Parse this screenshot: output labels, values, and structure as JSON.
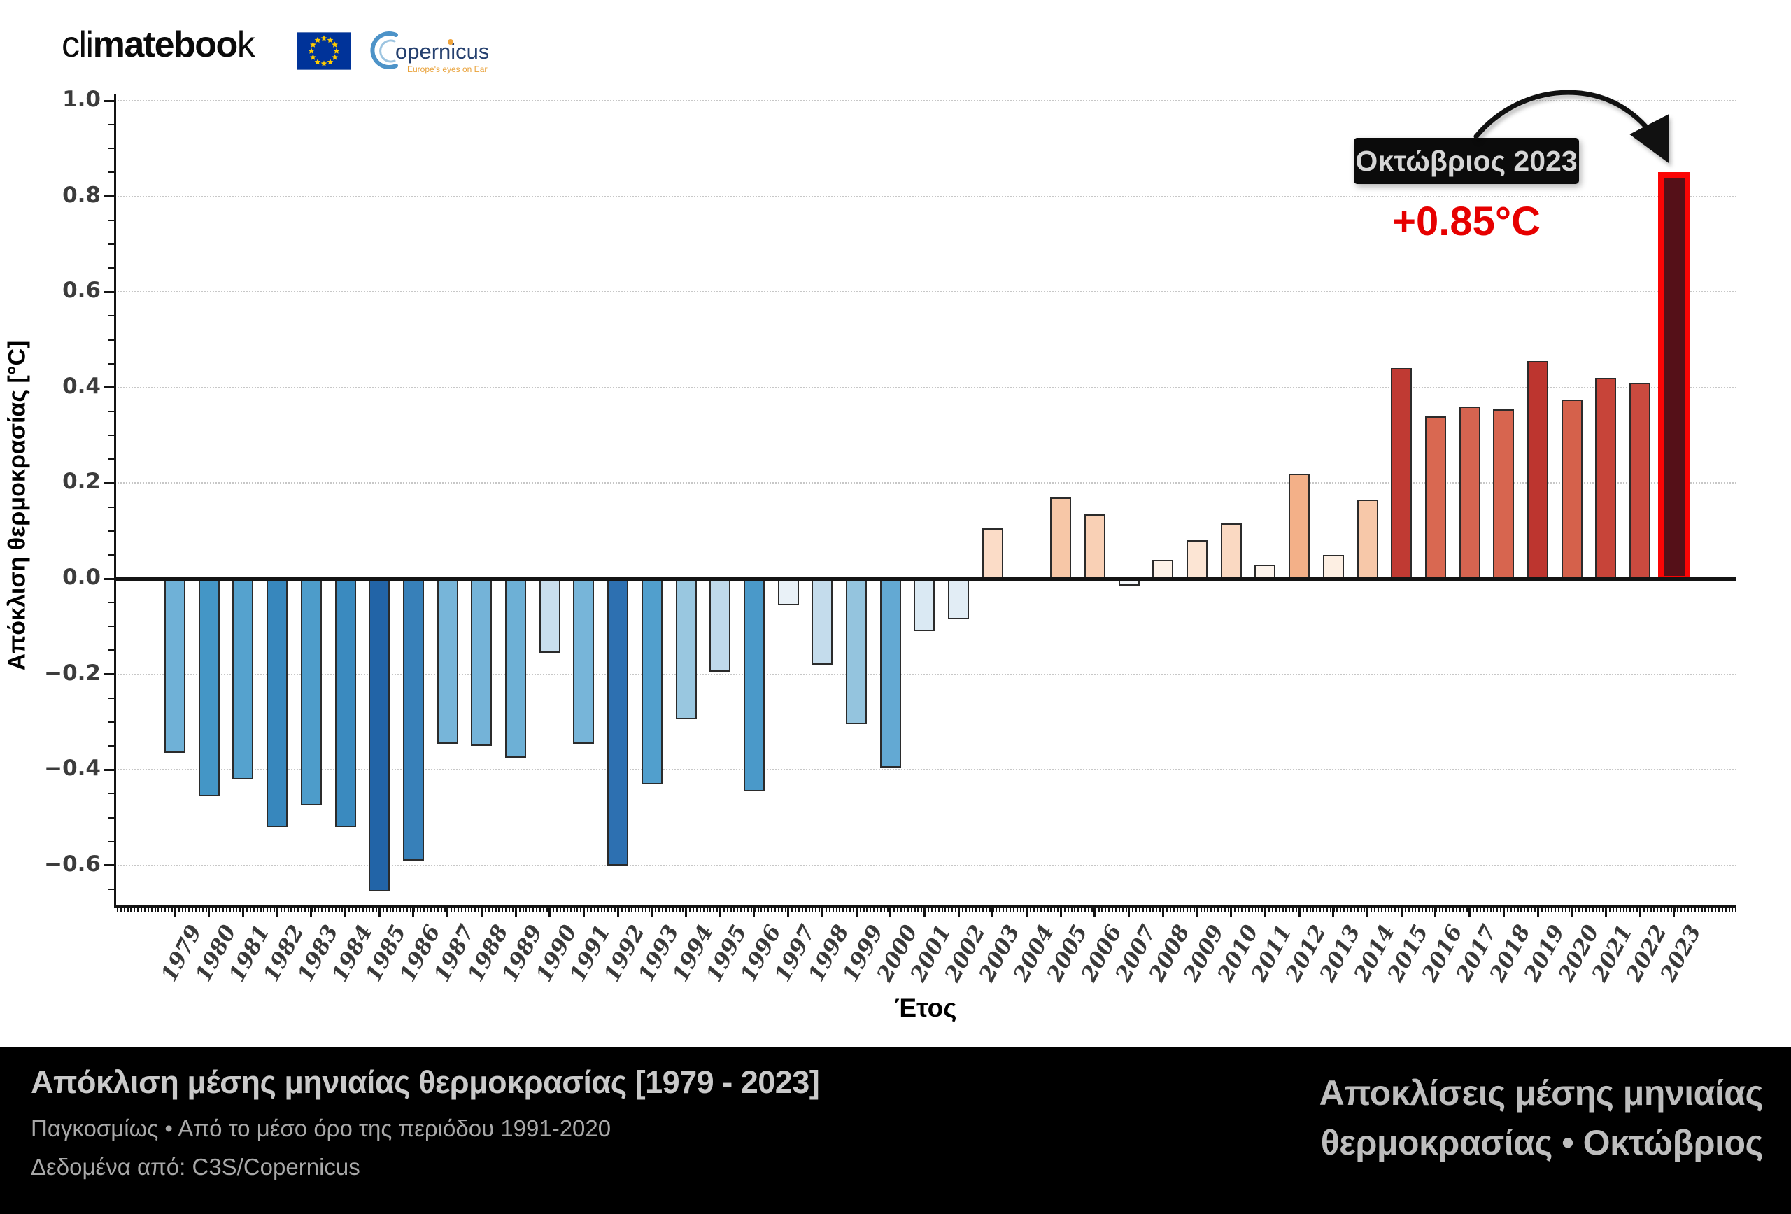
{
  "header": {
    "brand": {
      "part1": "cli",
      "part2": "mateboo",
      "part3": "k"
    },
    "eu_flag": "eu-flag",
    "copernicus_name": "opernicus",
    "copernicus_tagline": "Europe's eyes on Earth"
  },
  "chart_data": {
    "type": "bar",
    "title": "Απόκλιση μέσης μηνιαίας θερμοκρασίας [1979 - 2023]",
    "xlabel": "Έτος",
    "ylabel": "Απόκλιση θερμοκρασίας [°C]",
    "ylim": [
      -0.69,
      1.0
    ],
    "yticks": [
      1.0,
      0.8,
      0.6,
      0.4,
      0.2,
      0.0,
      -0.2,
      -0.4,
      -0.6
    ],
    "grid": "horizontal dotted",
    "legend": "none",
    "categories": [
      "1979",
      "1980",
      "1981",
      "1982",
      "1983",
      "1984",
      "1985",
      "1986",
      "1987",
      "1988",
      "1989",
      "1990",
      "1991",
      "1992",
      "1993",
      "1994",
      "1995",
      "1996",
      "1997",
      "1998",
      "1999",
      "2000",
      "2001",
      "2002",
      "2003",
      "2004",
      "2005",
      "2006",
      "2007",
      "2008",
      "2009",
      "2010",
      "2011",
      "2012",
      "2013",
      "2014",
      "2015",
      "2016",
      "2017",
      "2018",
      "2019",
      "2020",
      "2021",
      "2022",
      "2023"
    ],
    "values": [
      -0.365,
      -0.455,
      -0.42,
      -0.52,
      -0.475,
      -0.52,
      -0.655,
      -0.59,
      -0.345,
      -0.35,
      -0.375,
      -0.155,
      -0.345,
      -0.6,
      -0.43,
      -0.295,
      -0.195,
      -0.445,
      -0.055,
      -0.18,
      -0.305,
      -0.395,
      -0.11,
      -0.085,
      0.105,
      0.005,
      0.17,
      0.135,
      -0.015,
      0.04,
      0.08,
      0.115,
      0.03,
      0.22,
      0.05,
      0.165,
      0.44,
      0.34,
      0.36,
      0.355,
      0.455,
      0.375,
      0.42,
      0.41,
      0.85
    ],
    "bar_colors": [
      "#6fb1d7",
      "#4496c6",
      "#55a2ce",
      "#3787bd",
      "#4d9cca",
      "#3a8abf",
      "#2264a7",
      "#3780b9",
      "#77b5d9",
      "#74b3d8",
      "#6db0d6",
      "#c9dfee",
      "#77b5d9",
      "#2d70b1",
      "#519fcd",
      "#99c7e0",
      "#bfd9eb",
      "#4a99c9",
      "#e9f1f7",
      "#c4dcec",
      "#94c4de",
      "#63a9d3",
      "#dae9f3",
      "#e2edf5",
      "#fbdcc7",
      "#fefcfa",
      "#f7c7a7",
      "#f9d0b5",
      "#f4f7fa",
      "#fdf2e8",
      "#fce5d4",
      "#fad9c2",
      "#fdf4ec",
      "#f3b088",
      "#fdefe3",
      "#f7c8a9",
      "#c03a33",
      "#d96851",
      "#d66450",
      "#d7654f",
      "#bd352f",
      "#d5614b",
      "#c74439",
      "#ca4a3f",
      "#551018"
    ],
    "highlight": {
      "year": "2023",
      "fill": "#551018",
      "outline": "#fb0505"
    },
    "annotation": {
      "label": "Οκτώβριος 2023",
      "value": "+0.85°C",
      "value_color": "#e60000"
    }
  },
  "footer": {
    "title": "Απόκλιση μέσης μηνιαίας θερμοκρασίας [1979 - 2023]",
    "subtitle": "Παγκοσμίως • Από το μέσο όρο της περιόδου 1991-2020",
    "source": "Δεδομένα από: C3S/Copernicus",
    "right_line1": "Αποκλίσεις μέσης μηνιαίας",
    "right_line2": "θερμοκρασίας • Οκτώβριος"
  }
}
